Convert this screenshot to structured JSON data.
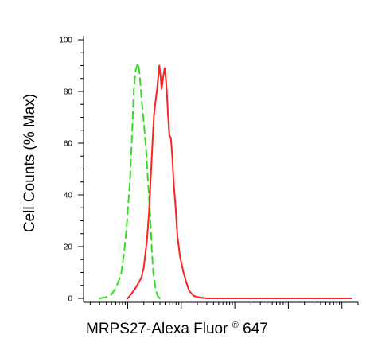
{
  "chart_data": {
    "type": "line",
    "title": "",
    "ylabel": "Cell Counts (% Max)",
    "xlabel": {
      "main": "MRPS27-Alexa Fluor",
      "mark": "®",
      "suffix": " 647"
    },
    "ylim": [
      0,
      100
    ],
    "yticks": [
      "0",
      "20",
      "40",
      "60",
      "80",
      "100"
    ],
    "x_scale": "log",
    "xlim": [
      0.0015,
      200
    ],
    "grid": false,
    "series": [
      {
        "style": "dashed",
        "color": "#33dd22",
        "points": [
          [
            0.003,
            0
          ],
          [
            0.004,
            0.5
          ],
          [
            0.005,
            1.5
          ],
          [
            0.006,
            4
          ],
          [
            0.0075,
            9
          ],
          [
            0.0085,
            17
          ],
          [
            0.0095,
            27
          ],
          [
            0.011,
            45
          ],
          [
            0.012,
            62
          ],
          [
            0.013,
            80
          ],
          [
            0.014,
            88
          ],
          [
            0.0155,
            91
          ],
          [
            0.0165,
            88
          ],
          [
            0.018,
            78
          ],
          [
            0.02,
            68
          ],
          [
            0.022,
            58
          ],
          [
            0.024,
            45
          ],
          [
            0.026,
            34
          ],
          [
            0.028,
            20
          ],
          [
            0.03,
            10
          ],
          [
            0.033,
            4
          ],
          [
            0.036,
            1
          ],
          [
            0.04,
            0
          ]
        ]
      },
      {
        "style": "solid",
        "color": "#ff2222",
        "points": [
          [
            0.01,
            0
          ],
          [
            0.012,
            2
          ],
          [
            0.014,
            4
          ],
          [
            0.016,
            6
          ],
          [
            0.018,
            8
          ],
          [
            0.02,
            12
          ],
          [
            0.023,
            23
          ],
          [
            0.025,
            33
          ],
          [
            0.027,
            47
          ],
          [
            0.029,
            60
          ],
          [
            0.031,
            71
          ],
          [
            0.033,
            76
          ],
          [
            0.035,
            80
          ],
          [
            0.037,
            85
          ],
          [
            0.039,
            90
          ],
          [
            0.041,
            86
          ],
          [
            0.043,
            81
          ],
          [
            0.045,
            84
          ],
          [
            0.047,
            87
          ],
          [
            0.049,
            89
          ],
          [
            0.051,
            86
          ],
          [
            0.053,
            82
          ],
          [
            0.055,
            76
          ],
          [
            0.057,
            70
          ],
          [
            0.06,
            63
          ],
          [
            0.064,
            62
          ],
          [
            0.068,
            55
          ],
          [
            0.072,
            45
          ],
          [
            0.078,
            36
          ],
          [
            0.085,
            24
          ],
          [
            0.095,
            16
          ],
          [
            0.11,
            10
          ],
          [
            0.125,
            6
          ],
          [
            0.14,
            3
          ],
          [
            0.17,
            1
          ],
          [
            0.2,
            0.5
          ],
          [
            0.3,
            0
          ],
          [
            5,
            0
          ],
          [
            150,
            0
          ]
        ]
      }
    ]
  }
}
